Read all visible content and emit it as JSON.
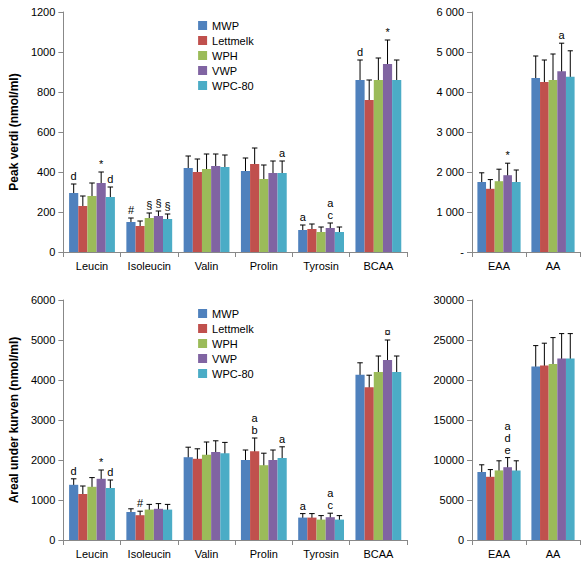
{
  "chart_data": [
    {
      "type": "bar",
      "ylabel": "Peak verdi (nmol/ml)",
      "categories": [
        "Leucin",
        "Isoleucin",
        "Valin",
        "Prolin",
        "Tyrosin",
        "BCAA"
      ],
      "ylim": [
        0,
        1200
      ],
      "yticks": [
        0,
        200,
        400,
        600,
        800,
        1000,
        1200
      ],
      "grid": false,
      "legend": "top",
      "series": [
        {
          "name": "MWP",
          "color": "#4f81bd",
          "values": [
            295,
            150,
            420,
            405,
            110,
            860
          ],
          "errors": [
            45,
            20,
            60,
            65,
            25,
            100
          ],
          "annotations": [
            [
              "d"
            ],
            [
              "#"
            ],
            null,
            null,
            [
              "a"
            ],
            [
              "d"
            ]
          ]
        },
        {
          "name": "Lettmelk",
          "color": "#c0504d",
          "values": [
            230,
            130,
            400,
            440,
            115,
            760
          ],
          "errors": [
            50,
            25,
            65,
            80,
            25,
            100
          ],
          "annotations": [
            null,
            null,
            null,
            null,
            null,
            null
          ]
        },
        {
          "name": "WPH",
          "color": "#9bbb59",
          "values": [
            280,
            170,
            415,
            365,
            100,
            860
          ],
          "errors": [
            65,
            25,
            75,
            70,
            25,
            110
          ],
          "annotations": [
            null,
            [
              "§"
            ],
            null,
            null,
            null,
            null
          ]
        },
        {
          "name": "VWP",
          "color": "#8064a2",
          "values": [
            345,
            180,
            430,
            395,
            120,
            940
          ],
          "errors": [
            55,
            25,
            60,
            60,
            25,
            120
          ],
          "annotations": [
            [
              "*"
            ],
            [
              "§"
            ],
            null,
            null,
            [
              "a",
              "c"
            ],
            [
              "*"
            ]
          ]
        },
        {
          "name": "WPC-80",
          "color": "#4bacc6",
          "values": [
            275,
            165,
            425,
            395,
            100,
            860
          ],
          "errors": [
            50,
            25,
            60,
            60,
            25,
            100
          ],
          "annotations": [
            [
              "d"
            ],
            [
              "§"
            ],
            null,
            [
              "a"
            ],
            null,
            null
          ]
        }
      ]
    },
    {
      "type": "bar",
      "categories": [
        "EAA",
        "AA"
      ],
      "ylim": [
        0,
        6000
      ],
      "yticks": [
        {
          "value": 0,
          "label": "-"
        },
        {
          "value": 1000,
          "label": "1 000"
        },
        {
          "value": 2000,
          "label": "2 000"
        },
        {
          "value": 3000,
          "label": "3 000"
        },
        {
          "value": 4000,
          "label": "4 000"
        },
        {
          "value": 5000,
          "label": "5 000"
        },
        {
          "value": 6000,
          "label": "6 000"
        }
      ],
      "grid": false,
      "series": [
        {
          "name": "MWP",
          "color": "#4f81bd",
          "values": [
            1750,
            4350
          ],
          "errors": [
            230,
            550
          ],
          "annotations": [
            null,
            null
          ]
        },
        {
          "name": "Lettmelk",
          "color": "#c0504d",
          "values": [
            1580,
            4250
          ],
          "errors": [
            230,
            550
          ],
          "annotations": [
            null,
            null
          ]
        },
        {
          "name": "WPH",
          "color": "#9bbb59",
          "values": [
            1770,
            4300
          ],
          "errors": [
            300,
            650
          ],
          "annotations": [
            null,
            null
          ]
        },
        {
          "name": "VWP",
          "color": "#8064a2",
          "values": [
            1920,
            4520
          ],
          "errors": [
            300,
            700
          ],
          "annotations": [
            [
              "*"
            ],
            [
              "a"
            ]
          ]
        },
        {
          "name": "WPC-80",
          "color": "#4bacc6",
          "values": [
            1750,
            4380
          ],
          "errors": [
            300,
            650
          ],
          "annotations": [
            null,
            null
          ]
        }
      ]
    },
    {
      "type": "bar",
      "ylabel": "Areal under kurven (nmol/ml)",
      "categories": [
        "Leucin",
        "Isoleucin",
        "Valin",
        "Prolin",
        "Tyrosin",
        "BCAA"
      ],
      "ylim": [
        0,
        6000
      ],
      "yticks": [
        0,
        1000,
        2000,
        3000,
        4000,
        5000,
        6000
      ],
      "grid": false,
      "legend": "top",
      "series": [
        {
          "name": "MWP",
          "color": "#4f81bd",
          "values": [
            1380,
            700,
            2070,
            2000,
            560,
            4130
          ],
          "errors": [
            150,
            80,
            250,
            250,
            100,
            300
          ],
          "annotations": [
            [
              "d"
            ],
            null,
            null,
            null,
            [
              "a"
            ],
            null
          ]
        },
        {
          "name": "Lettmelk",
          "color": "#c0504d",
          "values": [
            1150,
            620,
            2030,
            2220,
            560,
            3820
          ],
          "errors": [
            200,
            100,
            250,
            330,
            100,
            300
          ],
          "annotations": [
            null,
            [
              "#"
            ],
            null,
            [
              "a",
              "b"
            ],
            null,
            null
          ]
        },
        {
          "name": "WPH",
          "color": "#9bbb59",
          "values": [
            1330,
            760,
            2130,
            1870,
            510,
            4200
          ],
          "errors": [
            230,
            130,
            320,
            300,
            100,
            400
          ],
          "annotations": [
            null,
            null,
            null,
            null,
            null,
            null
          ]
        },
        {
          "name": "VWP",
          "color": "#8064a2",
          "values": [
            1530,
            780,
            2200,
            2000,
            570,
            4500
          ],
          "errors": [
            220,
            130,
            280,
            250,
            100,
            500
          ],
          "annotations": [
            [
              "*"
            ],
            null,
            null,
            null,
            [
              "a",
              "c"
            ],
            [
              "¤"
            ]
          ]
        },
        {
          "name": "WPC-80",
          "color": "#4bacc6",
          "values": [
            1300,
            760,
            2170,
            2050,
            510,
            4200
          ],
          "errors": [
            200,
            130,
            270,
            280,
            100,
            400
          ],
          "annotations": [
            [
              "d"
            ],
            null,
            null,
            [
              "a"
            ],
            null,
            null
          ]
        }
      ]
    },
    {
      "type": "bar",
      "categories": [
        "EAA",
        "AA"
      ],
      "ylim": [
        0,
        30000
      ],
      "yticks": [
        0,
        5000,
        10000,
        15000,
        20000,
        25000,
        30000
      ],
      "grid": false,
      "series": [
        {
          "name": "MWP",
          "color": "#4f81bd",
          "values": [
            8500,
            21700
          ],
          "errors": [
            900,
            2600
          ],
          "annotations": [
            null,
            null
          ]
        },
        {
          "name": "Lettmelk",
          "color": "#c0504d",
          "values": [
            7900,
            21800
          ],
          "errors": [
            900,
            2800
          ],
          "annotations": [
            null,
            null
          ]
        },
        {
          "name": "WPH",
          "color": "#9bbb59",
          "values": [
            8700,
            22000
          ],
          "errors": [
            1200,
            3300
          ],
          "annotations": [
            null,
            null
          ]
        },
        {
          "name": "VWP",
          "color": "#8064a2",
          "values": [
            9100,
            22700
          ],
          "errors": [
            1200,
            3100
          ],
          "annotations": [
            [
              "a",
              "d",
              "e"
            ],
            null
          ]
        },
        {
          "name": "WPC-80",
          "color": "#4bacc6",
          "values": [
            8700,
            22700
          ],
          "errors": [
            1200,
            3100
          ],
          "annotations": [
            null,
            null
          ]
        }
      ]
    }
  ]
}
